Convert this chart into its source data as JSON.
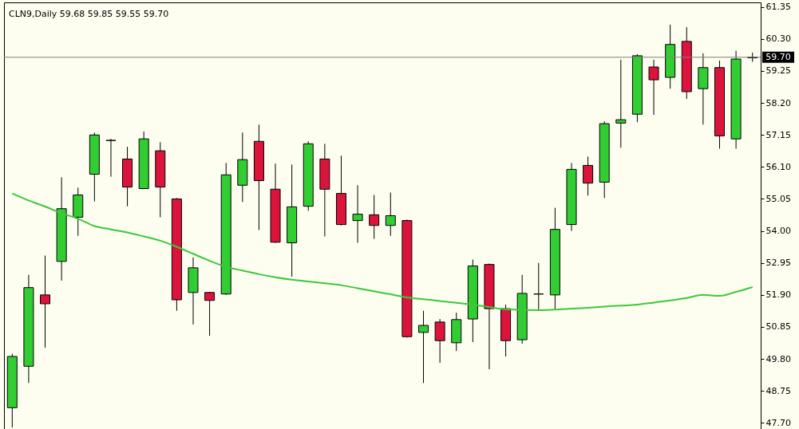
{
  "chart_data": {
    "type": "candlestick",
    "title": "CLN9,Daily 59.68 59.85 59.55 59.70",
    "categories": [
      null,
      null,
      null,
      null,
      null,
      null,
      null,
      null,
      null,
      null,
      null,
      null,
      null,
      null,
      null,
      null,
      null,
      null,
      null,
      null,
      null,
      null,
      null,
      null,
      null,
      null,
      null,
      null,
      null,
      null,
      null,
      null,
      null,
      null,
      null,
      null,
      null,
      null,
      null,
      null,
      null,
      null,
      null,
      null,
      null,
      null
    ],
    "ohlc": [
      [
        48.2,
        49.97,
        47.55,
        49.88
      ],
      [
        49.56,
        52.56,
        49.01,
        52.14
      ],
      [
        51.9,
        53.19,
        50.17,
        51.61
      ],
      [
        53.0,
        55.76,
        52.37,
        54.73
      ],
      [
        54.45,
        55.42,
        53.84,
        55.18
      ],
      [
        55.86,
        57.23,
        54.97,
        57.15
      ],
      [
        56.97,
        57.02,
        55.78,
        56.97
      ],
      [
        56.36,
        56.76,
        54.81,
        55.44
      ],
      [
        55.39,
        57.26,
        55.37,
        57.02
      ],
      [
        56.63,
        56.91,
        54.45,
        55.44
      ],
      [
        55.05,
        55.08,
        51.38,
        51.74
      ],
      [
        51.98,
        53.13,
        50.93,
        52.79
      ],
      [
        51.98,
        52.0,
        50.56,
        51.72
      ],
      [
        51.93,
        56.23,
        51.9,
        55.84
      ],
      [
        55.5,
        57.23,
        54.95,
        56.34
      ],
      [
        56.94,
        57.49,
        54.03,
        55.65
      ],
      [
        55.37,
        56.21,
        53.6,
        53.63
      ],
      [
        53.61,
        56.18,
        52.5,
        54.79
      ],
      [
        54.81,
        56.94,
        54.66,
        56.86
      ],
      [
        56.36,
        56.86,
        53.82,
        55.37
      ],
      [
        55.23,
        56.47,
        54.18,
        54.21
      ],
      [
        54.34,
        55.5,
        53.61,
        54.55
      ],
      [
        54.53,
        55.18,
        53.74,
        54.18
      ],
      [
        54.18,
        55.26,
        53.84,
        54.5
      ],
      [
        54.34,
        54.37,
        50.5,
        50.53
      ],
      [
        50.67,
        51.38,
        49.01,
        50.9
      ],
      [
        51.01,
        51.11,
        49.67,
        50.4
      ],
      [
        50.33,
        51.32,
        50.06,
        51.09
      ],
      [
        51.11,
        53.06,
        50.35,
        52.85
      ],
      [
        52.9,
        52.93,
        49.46,
        51.45
      ],
      [
        51.45,
        51.58,
        49.88,
        50.4
      ],
      [
        50.43,
        52.56,
        50.3,
        51.95
      ],
      [
        51.93,
        52.95,
        51.38,
        51.93
      ],
      [
        51.9,
        54.76,
        51.45,
        54.05
      ],
      [
        54.21,
        56.23,
        54.0,
        56.02
      ],
      [
        56.15,
        56.44,
        55.16,
        55.57
      ],
      [
        55.6,
        57.6,
        55.08,
        57.52
      ],
      [
        57.54,
        59.62,
        56.73,
        57.65
      ],
      [
        57.83,
        59.8,
        57.57,
        59.75
      ],
      [
        59.38,
        59.62,
        57.81,
        58.96
      ],
      [
        59.04,
        60.77,
        58.67,
        60.12
      ],
      [
        60.22,
        60.69,
        58.33,
        58.57
      ],
      [
        58.67,
        59.83,
        57.49,
        59.36
      ],
      [
        59.36,
        59.59,
        56.7,
        57.12
      ],
      [
        57.02,
        59.91,
        56.7,
        59.64
      ],
      [
        59.68,
        59.85,
        59.55,
        59.7
      ]
    ],
    "colors": [
      "#32cd32",
      "#32cd32",
      "#dc143c",
      "#32cd32",
      "#32cd32",
      "#32cd32",
      "#000000",
      "#dc143c",
      "#32cd32",
      "#dc143c",
      "#dc143c",
      "#32cd32",
      "#dc143c",
      "#32cd32",
      "#32cd32",
      "#dc143c",
      "#dc143c",
      "#32cd32",
      "#32cd32",
      "#dc143c",
      "#dc143c",
      "#32cd32",
      "#dc143c",
      "#32cd32",
      "#dc143c",
      "#32cd32",
      "#dc143c",
      "#32cd32",
      "#32cd32",
      "#dc143c",
      "#dc143c",
      "#32cd32",
      "#000000",
      "#32cd32",
      "#32cd32",
      "#dc143c",
      "#32cd32",
      "#32cd32",
      "#32cd32",
      "#dc143c",
      "#32cd32",
      "#dc143c",
      "#32cd32",
      "#dc143c",
      "#32cd32",
      "#32cd32"
    ],
    "series": [
      {
        "type": "line",
        "color": "#3cc83c",
        "values": [
          55.23,
          55.0,
          54.8,
          54.58,
          54.4,
          54.16,
          54.05,
          53.95,
          53.82,
          53.68,
          53.48,
          53.25,
          53.02,
          52.82,
          52.7,
          52.58,
          52.48,
          52.4,
          52.34,
          52.28,
          52.22,
          52.12,
          52.02,
          51.92,
          51.82,
          51.76,
          51.7,
          51.64,
          51.58,
          51.5,
          51.43,
          51.41,
          51.4,
          51.42,
          51.45,
          51.48,
          51.52,
          51.55,
          51.58,
          51.65,
          51.72,
          51.8,
          51.9,
          51.87,
          52.0,
          52.16
        ]
      }
    ],
    "ylim": [
      47.5,
      61.5
    ],
    "yticks": [
      {
        "value": 47.7,
        "label": "47.70"
      },
      48.75,
      {
        "value": 49.8,
        "label": "49.80"
      },
      50.85,
      {
        "value": 51.9,
        "label": "51.90"
      },
      52.95,
      {
        "value": 54,
        "label": "54.00"
      },
      55.05,
      {
        "value": 56.1,
        "label": "56.10"
      },
      57.15,
      {
        "value": 58.2,
        "label": "58.20"
      },
      59.25,
      {
        "value": 60.3,
        "label": "60.30"
      },
      61.35
    ],
    "tick_labels": "y",
    "ref_lines": [
      {
        "axis": "y",
        "value": 59.7,
        "label": "59.70",
        "color": "#808080"
      }
    ]
  }
}
